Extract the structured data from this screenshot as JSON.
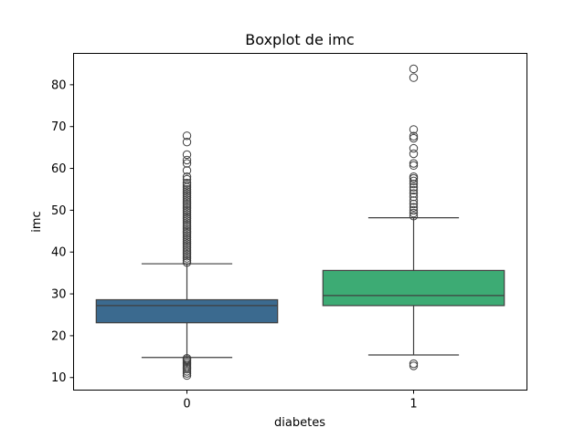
{
  "chart_data": {
    "type": "box",
    "title": "Boxplot de imc",
    "xlabel": "diabetes",
    "ylabel": "imc",
    "ylim": [
      7.0,
      87.5
    ],
    "yticks": [
      10,
      20,
      30,
      40,
      50,
      60,
      70,
      80
    ],
    "categories": [
      "0",
      "1"
    ],
    "boxes": [
      {
        "category": "0",
        "color": "#3b6a8f",
        "whisker_low": 14.8,
        "q1": 23.1,
        "median": 27.2,
        "q3": 28.6,
        "whisker_high": 37.2,
        "outliers": [
          10.5,
          11.0,
          11.5,
          12.0,
          12.4,
          12.8,
          13.2,
          13.6,
          14.0,
          14.3,
          14.6,
          37.5,
          38.0,
          38.5,
          39.0,
          39.5,
          40.0,
          40.5,
          41.0,
          41.5,
          42.0,
          42.5,
          43.0,
          43.5,
          44.0,
          44.5,
          45.0,
          45.5,
          46.0,
          46.5,
          47.0,
          47.5,
          48.0,
          48.5,
          49.0,
          49.5,
          50.0,
          50.5,
          51.0,
          51.5,
          52.0,
          52.5,
          53.0,
          53.5,
          54.0,
          54.5,
          55.0,
          55.5,
          56.0,
          56.5,
          57.4,
          58.0,
          59.5,
          61.2,
          62.0,
          63.3,
          66.3,
          67.8
        ]
      },
      {
        "category": "1",
        "color": "#3dab74",
        "whisker_low": 15.4,
        "q1": 27.2,
        "median": 29.6,
        "q3": 35.6,
        "whisker_high": 48.2,
        "outliers": [
          12.8,
          13.3,
          48.6,
          49.3,
          50.0,
          50.7,
          51.5,
          52.3,
          53.2,
          54.0,
          54.8,
          55.5,
          56.3,
          57.0,
          57.6,
          58.0,
          60.7,
          61.2,
          63.5,
          64.8,
          67.2,
          67.7,
          69.3,
          81.7,
          83.8
        ]
      }
    ],
    "grid": false,
    "legend": "none"
  }
}
